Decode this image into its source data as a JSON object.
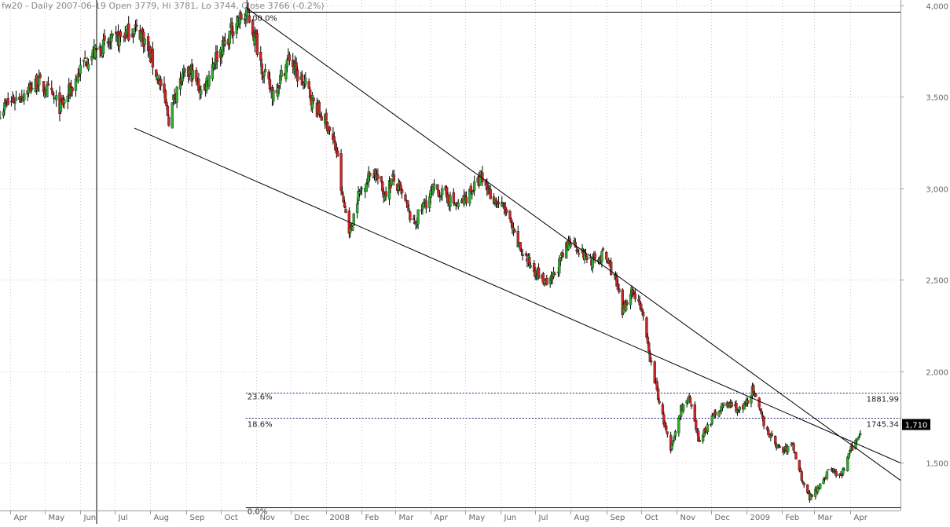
{
  "chart_data": {
    "type": "candlestick",
    "title": "fw20 - Daily 2007-06-19 Open 3779, Hi 3781, Lo 3744, Close 3766 (-0.2%)",
    "y_axis": {
      "ticks": [
        1500,
        2000,
        2500,
        3000,
        3500,
        4000
      ],
      "tick_labels": [
        "1,500",
        "2,000",
        "2,500",
        "3,000",
        "3,500",
        "4,000"
      ],
      "range": [
        1240,
        4030
      ],
      "position": "right"
    },
    "x_axis": {
      "tick_labels": [
        "Apr",
        "May",
        "Jun",
        "Jul",
        "Aug",
        "Sep",
        "Oct",
        "Nov",
        "Dec",
        "2008",
        "Feb",
        "Mar",
        "Apr",
        "May",
        "Jun",
        "Jul",
        "Aug",
        "Sep",
        "Oct",
        "Nov",
        "Dec",
        "2009",
        "Feb",
        "Mar",
        "Apr"
      ],
      "range": [
        "2007-03-23",
        "2009-05-15"
      ]
    },
    "grid": true,
    "colors": {
      "up": "#2eaa2e",
      "down": "#c62828",
      "wick": "#000000",
      "grid": "#cccccc",
      "lines": "#000000",
      "fib": "#1a237e"
    },
    "current_price": {
      "label": "1,710",
      "value": 1710
    },
    "fibonacci": [
      {
        "pct_label": "100.0%",
        "value": 3966,
        "value_label": ""
      },
      {
        "pct_label": "23.6%",
        "value": 1881.99,
        "value_label": "1881.99"
      },
      {
        "pct_label": "18.6%",
        "value": 1745.34,
        "value_label": "1745.34"
      },
      {
        "pct_label": "0.0%",
        "value": 1258,
        "value_label": ""
      }
    ],
    "trendlines": [
      {
        "from": [
          "2007-10-23",
          3990
        ],
        "to": [
          "2009-05-15",
          1405
        ]
      },
      {
        "from": [
          "2007-07-18",
          3330
        ],
        "to": [
          "2009-05-15",
          1500
        ]
      }
    ],
    "marker_date": "2007-06-19",
    "price_anchors": [
      [
        "2007-03-23",
        3430
      ],
      [
        "2007-04-10",
        3510
      ],
      [
        "2007-04-25",
        3580
      ],
      [
        "2007-05-05",
        3520
      ],
      [
        "2007-05-15",
        3440
      ],
      [
        "2007-05-25",
        3560
      ],
      [
        "2007-06-05",
        3700
      ],
      [
        "2007-06-19",
        3766
      ],
      [
        "2007-07-05",
        3820
      ],
      [
        "2007-07-16",
        3870
      ],
      [
        "2007-07-24",
        3850
      ],
      [
        "2007-08-01",
        3720
      ],
      [
        "2007-08-10",
        3560
      ],
      [
        "2007-08-17",
        3380
      ],
      [
        "2007-08-24",
        3560
      ],
      [
        "2007-09-05",
        3640
      ],
      [
        "2007-09-15",
        3520
      ],
      [
        "2007-09-25",
        3700
      ],
      [
        "2007-10-05",
        3790
      ],
      [
        "2007-10-15",
        3920
      ],
      [
        "2007-10-25",
        3950
      ],
      [
        "2007-11-01",
        3800
      ],
      [
        "2007-11-08",
        3620
      ],
      [
        "2007-11-15",
        3520
      ],
      [
        "2007-11-22",
        3600
      ],
      [
        "2007-11-30",
        3720
      ],
      [
        "2007-12-08",
        3600
      ],
      [
        "2007-12-15",
        3560
      ],
      [
        "2007-12-22",
        3450
      ],
      [
        "2008-01-02",
        3350
      ],
      [
        "2008-01-10",
        3200
      ],
      [
        "2008-01-15",
        2950
      ],
      [
        "2008-01-22",
        2760
      ],
      [
        "2008-01-28",
        2950
      ],
      [
        "2008-02-05",
        3050
      ],
      [
        "2008-02-12",
        3100
      ],
      [
        "2008-02-20",
        2970
      ],
      [
        "2008-02-28",
        3050
      ],
      [
        "2008-03-08",
        2950
      ],
      [
        "2008-03-17",
        2800
      ],
      [
        "2008-03-25",
        2900
      ],
      [
        "2008-04-05",
        3000
      ],
      [
        "2008-04-15",
        2950
      ],
      [
        "2008-04-25",
        2900
      ],
      [
        "2008-05-05",
        2980
      ],
      [
        "2008-05-15",
        3050
      ],
      [
        "2008-05-25",
        2950
      ],
      [
        "2008-06-05",
        2880
      ],
      [
        "2008-06-15",
        2700
      ],
      [
        "2008-06-25",
        2600
      ],
      [
        "2008-07-05",
        2520
      ],
      [
        "2008-07-12",
        2460
      ],
      [
        "2008-07-20",
        2560
      ],
      [
        "2008-08-01",
        2730
      ],
      [
        "2008-08-10",
        2650
      ],
      [
        "2008-08-20",
        2600
      ],
      [
        "2008-08-30",
        2640
      ],
      [
        "2008-09-08",
        2520
      ],
      [
        "2008-09-15",
        2320
      ],
      [
        "2008-09-22",
        2450
      ],
      [
        "2008-09-30",
        2380
      ],
      [
        "2008-10-08",
        2100
      ],
      [
        "2008-10-13",
        1950
      ],
      [
        "2008-10-20",
        1750
      ],
      [
        "2008-10-27",
        1560
      ],
      [
        "2008-11-05",
        1800
      ],
      [
        "2008-11-12",
        1850
      ],
      [
        "2008-11-20",
        1620
      ],
      [
        "2008-11-28",
        1700
      ],
      [
        "2008-12-08",
        1800
      ],
      [
        "2008-12-18",
        1820
      ],
      [
        "2008-12-28",
        1780
      ],
      [
        "2009-01-06",
        1900
      ],
      [
        "2009-01-14",
        1750
      ],
      [
        "2009-01-22",
        1640
      ],
      [
        "2009-02-01",
        1560
      ],
      [
        "2009-02-10",
        1600
      ],
      [
        "2009-02-18",
        1420
      ],
      [
        "2009-02-25",
        1310
      ],
      [
        "2009-03-05",
        1380
      ],
      [
        "2009-03-15",
        1470
      ],
      [
        "2009-03-24",
        1420
      ],
      [
        "2009-04-01",
        1560
      ],
      [
        "2009-04-08",
        1640
      ],
      [
        "2009-04-12",
        1710
      ]
    ]
  }
}
